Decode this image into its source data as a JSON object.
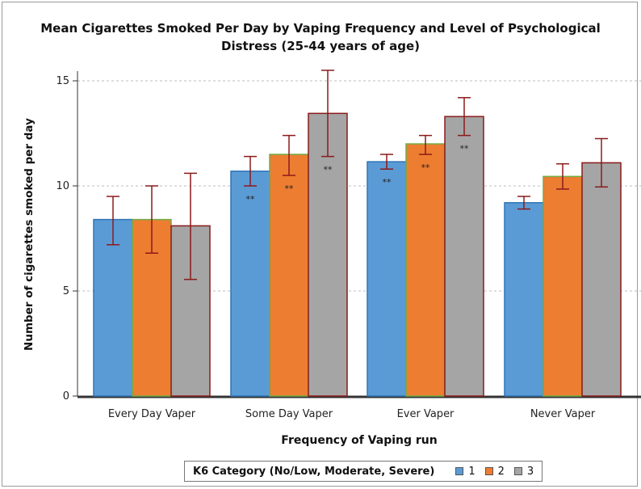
{
  "chart_data": {
    "type": "bar",
    "title": "Mean Cigarettes Smoked Per Day by Vaping Frequency and Level of Psychological Distress (25-44 years of age)",
    "xlabel": "Frequency of Vaping run",
    "ylabel": "Number of cigarettes smoked per day",
    "ylim": [
      0,
      15
    ],
    "yticks": [
      "0",
      "5",
      "10",
      "15"
    ],
    "grid": true,
    "legend_title": "K6 Category (No/Low, Moderate, Severe)",
    "legend_position": "bottom",
    "categories": [
      "Every Day Vaper",
      "Some Day Vaper",
      "Ever Vaper",
      "Never Vaper"
    ],
    "series": [
      {
        "name": "1",
        "color": "#5b9bd5",
        "border": "#2e74b5",
        "values": [
          8.4,
          10.7,
          11.15,
          9.2
        ],
        "error_low": [
          7.2,
          10.0,
          10.8,
          8.9
        ],
        "error_high": [
          9.5,
          11.4,
          11.5,
          9.5
        ],
        "annotations": [
          "",
          "**",
          "**",
          ""
        ]
      },
      {
        "name": "2",
        "color": "#ed7d31",
        "border": "#70ad47",
        "values": [
          8.4,
          11.5,
          12.0,
          10.45
        ],
        "error_low": [
          6.8,
          10.5,
          11.5,
          9.85
        ],
        "error_high": [
          10.0,
          12.4,
          12.4,
          11.05
        ],
        "annotations": [
          "",
          "**",
          "**",
          ""
        ]
      },
      {
        "name": "3",
        "color": "#a5a5a5",
        "border": "#8b1a1a",
        "values": [
          8.1,
          13.45,
          13.3,
          11.1
        ],
        "error_low": [
          5.55,
          11.4,
          12.4,
          9.95
        ],
        "error_high": [
          10.6,
          15.5,
          14.2,
          12.25
        ],
        "annotations": [
          "",
          "**",
          "**",
          ""
        ]
      }
    ],
    "error_bar_color": "#8b1a1a"
  }
}
